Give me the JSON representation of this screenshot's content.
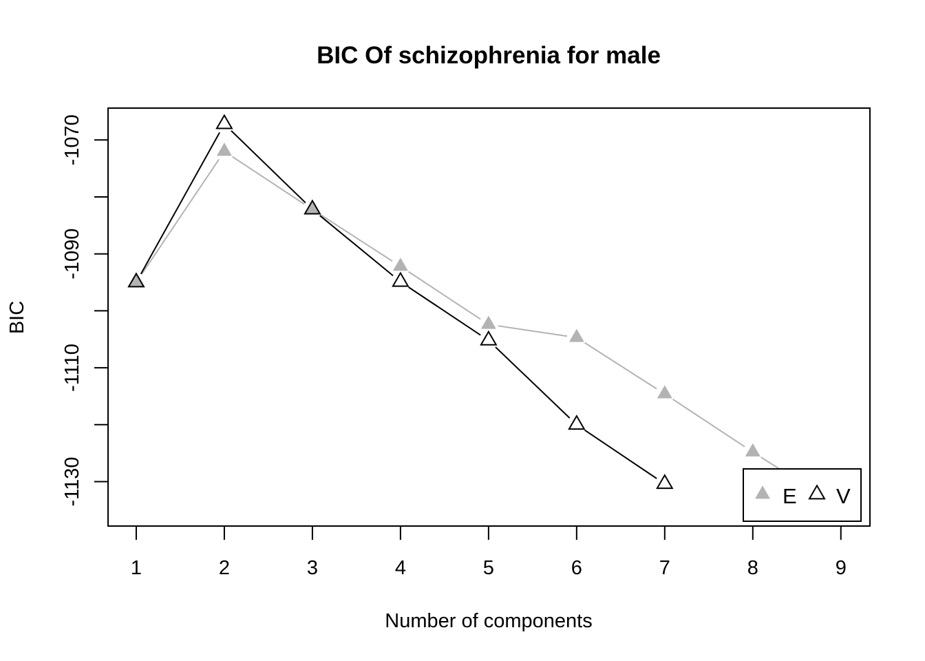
{
  "chart_data": {
    "type": "line",
    "title": "BIC Of schizophrenia for male",
    "xlabel": "Number of components",
    "ylabel": "BIC",
    "x_ticks": [
      1,
      2,
      3,
      4,
      5,
      6,
      7,
      8,
      9
    ],
    "y_ticks": [
      -1070,
      -1090,
      -1110,
      -1130
    ],
    "xlim": [
      0.68,
      9.33
    ],
    "ylim": [
      -1137.8,
      -1064.4
    ],
    "grid": false,
    "legend_position": "bottom-right",
    "series": [
      {
        "name": "E",
        "color": "#b3b3b3",
        "marker": "filled-triangle",
        "x": [
          1,
          2,
          3,
          4,
          5,
          6,
          7,
          8,
          9
        ],
        "y": [
          -1095.0,
          -1072.0,
          -1082.2,
          -1092.2,
          -1102.4,
          -1104.7,
          -1114.6,
          -1124.8,
          -1134.6
        ]
      },
      {
        "name": "V",
        "color": "#000000",
        "marker": "open-triangle",
        "x": [
          1,
          2,
          3,
          4,
          5,
          6,
          7
        ],
        "y": [
          -1095.0,
          -1067.2,
          -1082.2,
          -1094.9,
          -1105.2,
          -1120.0,
          -1130.4
        ]
      }
    ]
  }
}
